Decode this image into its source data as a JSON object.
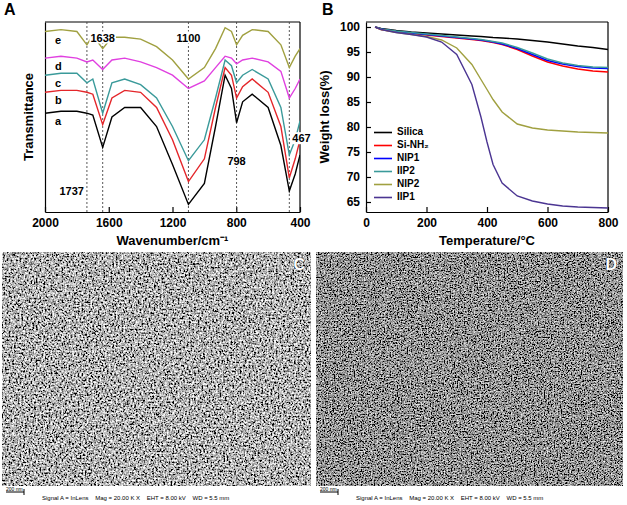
{
  "chart_data": [
    {
      "type": "line",
      "panel": "A",
      "x_label": "Wavenumber/cm⁻¹",
      "y_label": "Transmittance",
      "xlim": [
        2000,
        400
      ],
      "xticks": [
        2000,
        1600,
        1200,
        800,
        400
      ],
      "ylim": [
        0,
        100
      ],
      "tick_labels": "x",
      "x": [
        2000,
        1900,
        1800,
        1737,
        1700,
        1638,
        1580,
        1500,
        1400,
        1300,
        1200,
        1100,
        1000,
        930,
        870,
        830,
        798,
        760,
        700,
        600,
        520,
        467,
        430,
        400
      ],
      "series": [
        {
          "name": "a",
          "color": "#000000",
          "values": [
            52,
            53,
            53,
            52,
            51,
            34,
            50,
            55,
            55,
            45,
            25,
            4,
            15,
            45,
            72,
            65,
            47,
            58,
            62,
            55,
            35,
            11,
            20,
            30
          ]
        },
        {
          "name": "b",
          "color": "#e4262a",
          "values": [
            63,
            64,
            64,
            63,
            62,
            46,
            60,
            64,
            63,
            55,
            38,
            16,
            28,
            55,
            76,
            72,
            60,
            66,
            70,
            63,
            45,
            18,
            28,
            38
          ]
        },
        {
          "name": "c",
          "color": "#3a9a9a",
          "values": [
            72,
            73,
            73,
            68,
            70,
            52,
            68,
            70,
            67,
            60,
            45,
            27,
            38,
            60,
            80,
            77,
            68,
            72,
            75,
            70,
            55,
            30,
            38,
            48
          ]
        },
        {
          "name": "d",
          "color": "#e040e0",
          "values": [
            81,
            82,
            81,
            79,
            80,
            75,
            80,
            81,
            79,
            76,
            72,
            65,
            69,
            76,
            82,
            81,
            78,
            80,
            81,
            79,
            74,
            60,
            65,
            70
          ]
        },
        {
          "name": "e",
          "color": "#a0a040",
          "values": [
            95,
            96,
            95,
            88,
            93,
            86,
            92,
            92,
            91,
            87,
            80,
            70,
            76,
            86,
            97,
            95,
            88,
            93,
            96,
            95,
            88,
            76,
            82,
            86
          ]
        }
      ],
      "annotations": [
        {
          "text": "1737",
          "x": 1737
        },
        {
          "text": "1638",
          "x": 1638
        },
        {
          "text": "1100",
          "x": 1100
        },
        {
          "text": "798",
          "x": 798
        },
        {
          "text": "467",
          "x": 467
        }
      ]
    },
    {
      "type": "line",
      "panel": "B",
      "x_label": "Temperature/°C",
      "y_label": "Weight loss(%)",
      "xlim": [
        0,
        800
      ],
      "xticks": [
        0,
        200,
        400,
        600,
        800
      ],
      "ylim": [
        63,
        101
      ],
      "yticks": [
        65,
        70,
        75,
        80,
        85,
        90,
        95,
        100
      ],
      "legend": "lower left",
      "x": [
        30,
        50,
        100,
        150,
        200,
        250,
        300,
        350,
        380,
        400,
        420,
        450,
        500,
        550,
        600,
        650,
        700,
        750,
        800
      ],
      "series": [
        {
          "name": "Silica",
          "color": "#000000",
          "values": [
            100,
            99.7,
            99.3,
            99.0,
            98.8,
            98.6,
            98.4,
            98.2,
            98.1,
            98.0,
            97.9,
            97.8,
            97.6,
            97.3,
            97.0,
            96.6,
            96.2,
            95.9,
            95.5
          ]
        },
        {
          "name": "Si-NH₂",
          "color": "#ff0000",
          "values": [
            100,
            99.5,
            99.0,
            98.7,
            98.4,
            98.1,
            97.8,
            97.5,
            97.3,
            97.1,
            96.9,
            96.5,
            95.5,
            94.2,
            93.0,
            92.2,
            91.6,
            91.2,
            91.0
          ]
        },
        {
          "name": "NIP1",
          "color": "#0000ff",
          "values": [
            100,
            99.6,
            99.1,
            98.8,
            98.5,
            98.2,
            97.9,
            97.6,
            97.4,
            97.2,
            97.0,
            96.6,
            95.7,
            94.5,
            93.3,
            92.6,
            92.1,
            91.8,
            91.7
          ]
        },
        {
          "name": "IIP2",
          "color": "#3a9a9a",
          "values": [
            100,
            99.6,
            99.2,
            98.9,
            98.6,
            98.3,
            98.0,
            97.7,
            97.5,
            97.3,
            97.1,
            96.8,
            95.9,
            94.8,
            93.6,
            92.8,
            92.3,
            92.0,
            91.9
          ]
        },
        {
          "name": "NIP2",
          "color": "#a0a040",
          "values": [
            100,
            99.5,
            98.9,
            98.5,
            98.1,
            97.4,
            95.8,
            92.5,
            89.5,
            87.5,
            85.5,
            83.0,
            80.6,
            79.8,
            79.4,
            79.2,
            79.0,
            78.9,
            78.8
          ]
        },
        {
          "name": "IIP1",
          "color": "#4b3592",
          "values": [
            100,
            99.5,
            98.9,
            98.5,
            98.0,
            97.0,
            94.5,
            88.5,
            82.0,
            77.0,
            72.5,
            68.8,
            66.2,
            65.2,
            64.6,
            64.2,
            64.0,
            63.9,
            63.8
          ]
        }
      ]
    }
  ],
  "images": [
    {
      "label": "C",
      "scale_bar": "200 nm",
      "info": "Signal A = InLens    Mag = 20.00 K X    EHT = 8.00 kV    WD = 5.5 mm"
    },
    {
      "label": "D",
      "scale_bar": "200 nm",
      "info": "Signal A = InLens    Mag = 20.00 K X    EHT = 8.00 kV    WD = 5.5 mm"
    }
  ]
}
